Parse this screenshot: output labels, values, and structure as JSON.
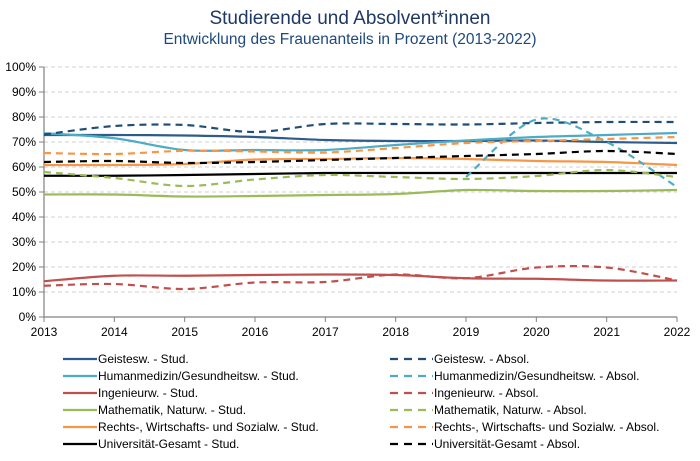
{
  "chart_data": {
    "type": "line",
    "title": "Studierende und Absolvent*innen",
    "subtitle": "Entwicklung  des Frauenanteils  in Prozent  (2013-2022)",
    "xlabel": "",
    "ylabel": "",
    "x": [
      2013,
      2014,
      2015,
      2016,
      2017,
      2018,
      2019,
      2020,
      2021,
      2022
    ],
    "x_tick_labels": [
      "2013",
      "2014",
      "2015",
      "2016",
      "2017",
      "2018",
      "2019",
      "2020",
      "2021",
      "2022"
    ],
    "ylim": [
      0,
      100
    ],
    "y_ticks": [
      0,
      10,
      20,
      30,
      40,
      50,
      60,
      70,
      80,
      90,
      100
    ],
    "y_tick_labels": [
      "0%",
      "10%",
      "20%",
      "30%",
      "40%",
      "50%",
      "60%",
      "70%",
      "80%",
      "90%",
      "100%"
    ],
    "grid": "horizontal-dashed",
    "legend_position": "bottom",
    "series": [
      {
        "name": "Geistesw. -  Stud.",
        "color": "#2e5c8a",
        "style": "solid",
        "values": [
          72.8,
          72.8,
          72.6,
          72.0,
          70.8,
          70.4,
          70.4,
          70.6,
          70.0,
          69.6
        ]
      },
      {
        "name": "Humanmedizin/Gesundheitsw. -  Stud.",
        "color": "#4bacc6",
        "style": "solid",
        "values": [
          73.5,
          71.5,
          66.8,
          66.8,
          66.8,
          68.8,
          70.6,
          72.0,
          72.8,
          73.6
        ]
      },
      {
        "name": "Ingenieurw. -  Stud.",
        "color": "#c0504d",
        "style": "solid",
        "values": [
          14.3,
          16.5,
          16.5,
          16.8,
          17.0,
          16.8,
          15.5,
          15.3,
          14.6,
          14.6
        ]
      },
      {
        "name": "Mathematik, Naturw. -  Stud.",
        "color": "#9bbb59",
        "style": "solid",
        "values": [
          49.0,
          49.0,
          48.2,
          48.4,
          48.8,
          49.2,
          50.8,
          50.4,
          50.4,
          50.8
        ]
      },
      {
        "name": "Rechts-, Wirtschafts- und Sozialw. -  Stud.",
        "color": "#f79646",
        "style": "solid",
        "values": [
          60.8,
          60.8,
          61.2,
          63.0,
          63.2,
          63.6,
          63.2,
          62.4,
          62.0,
          60.8
        ]
      },
      {
        "name": "Universität-Gesamt -  Stud.",
        "color": "#000000",
        "style": "solid",
        "values": [
          56.5,
          56.5,
          56.8,
          57.2,
          57.6,
          57.6,
          57.6,
          57.6,
          57.6,
          57.6
        ]
      },
      {
        "name": "Geistesw. -  Absol.",
        "color": "#1f4e79",
        "style": "dashed",
        "values": [
          73.0,
          76.4,
          76.8,
          74.0,
          77.2,
          77.2,
          77.0,
          77.6,
          78.0,
          78.0
        ]
      },
      {
        "name": "Humanmedizin/Gesundheitsw. -  Absol.",
        "color": "#4bacc6",
        "style": "dashed",
        "values": [
          null,
          null,
          null,
          null,
          null,
          null,
          56.0,
          79.0,
          70.0,
          52.0
        ]
      },
      {
        "name": "Ingenieurw. -  Absol.",
        "color": "#c0504d",
        "style": "dashed",
        "values": [
          12.5,
          13.2,
          11.2,
          13.8,
          14.0,
          17.0,
          15.5,
          19.8,
          19.8,
          14.6
        ]
      },
      {
        "name": "Mathematik, Naturw. -  Absol.",
        "color": "#9bbb59",
        "style": "dashed",
        "values": [
          58.0,
          55.6,
          52.4,
          55.0,
          56.8,
          56.0,
          55.2,
          56.4,
          58.8,
          56.0
        ]
      },
      {
        "name": "Rechts-, Wirtschafts- und Sozialw. -  Absol.",
        "color": "#f79646",
        "style": "dashed",
        "values": [
          65.6,
          65.2,
          66.5,
          66.2,
          65.8,
          67.6,
          69.6,
          70.4,
          71.2,
          72.0
        ]
      },
      {
        "name": "Universität-Gesamt -  Absol.",
        "color": "#000000",
        "style": "dashed",
        "values": [
          62.0,
          62.4,
          61.6,
          62.0,
          62.8,
          63.6,
          64.4,
          65.2,
          66.4,
          65.2
        ]
      }
    ]
  }
}
